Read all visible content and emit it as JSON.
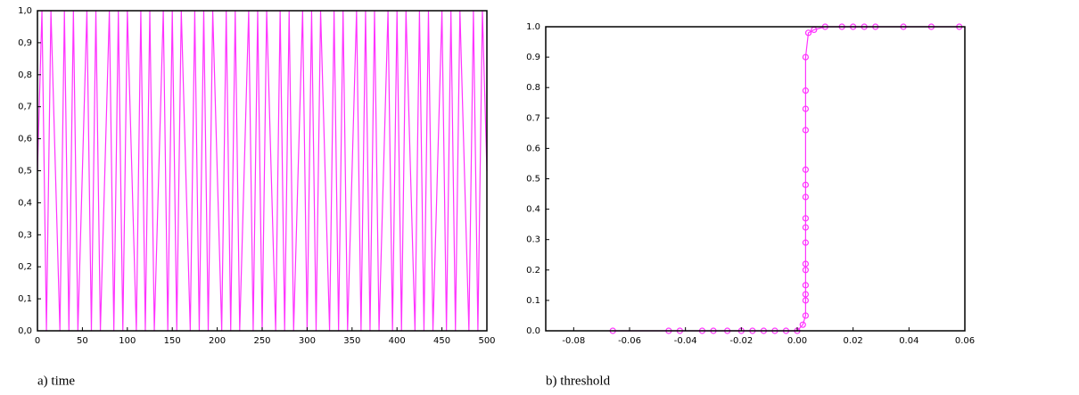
{
  "chart_data": [
    {
      "type": "line",
      "caption": "a) time",
      "x": [
        0,
        5,
        10,
        15,
        20,
        25,
        30,
        35,
        40,
        45,
        50,
        55,
        60,
        65,
        70,
        75,
        80,
        85,
        90,
        95,
        100,
        105,
        110,
        115,
        120,
        125,
        130,
        135,
        140,
        145,
        150,
        155,
        160,
        165,
        170,
        175,
        180,
        185,
        190,
        195,
        200,
        205,
        210,
        215,
        220,
        225,
        230,
        235,
        240,
        245,
        250,
        255,
        260,
        265,
        270,
        275,
        280,
        285,
        290,
        295,
        300,
        305,
        310,
        315,
        320,
        325,
        330,
        335,
        340,
        345,
        350,
        355,
        360,
        365,
        370,
        375,
        380,
        385,
        390,
        395,
        400,
        405,
        410,
        415,
        420,
        425,
        430,
        435,
        440,
        445,
        450,
        455,
        460,
        465,
        470,
        475,
        480,
        485,
        490,
        495,
        500
      ],
      "series": [
        {
          "color": "#ff33ff",
          "values": [
            0.5,
            1,
            0,
            1,
            0.5,
            0,
            1,
            0,
            1,
            0,
            0.5,
            1,
            0,
            1,
            0,
            0.5,
            1,
            0,
            1,
            0,
            1,
            0.5,
            0,
            1,
            0,
            1,
            0,
            0.5,
            1,
            0,
            1,
            0,
            1,
            0.5,
            0,
            1,
            0,
            1,
            0,
            1,
            0.5,
            0,
            1,
            0,
            1,
            0,
            0.5,
            1,
            0,
            1,
            0,
            1,
            0.5,
            0,
            1,
            0,
            1,
            0,
            0.5,
            1,
            0,
            1,
            0,
            1,
            0.5,
            0,
            1,
            0,
            1,
            0,
            0.5,
            1,
            0,
            1,
            0,
            1,
            0,
            0.5,
            1,
            0,
            1,
            0,
            1,
            0.5,
            0,
            1,
            0,
            1,
            0,
            0.5,
            1,
            0,
            1,
            0,
            1,
            0.5,
            0,
            1,
            0,
            1,
            0.5
          ]
        }
      ],
      "xlim": [
        0,
        500
      ],
      "xticks": [
        0,
        50,
        100,
        150,
        200,
        250,
        300,
        350,
        400,
        450,
        500
      ],
      "ylim": [
        0,
        1
      ],
      "yticks": [
        {
          "value": 0,
          "label": "0,0"
        },
        {
          "value": 0.1,
          "label": "0,1"
        },
        {
          "value": 0.2,
          "label": "0,2"
        },
        {
          "value": 0.3,
          "label": "0,3"
        },
        {
          "value": 0.4,
          "label": "0,4"
        },
        {
          "value": 0.5,
          "label": "0,5"
        },
        {
          "value": 0.6,
          "label": "0,6"
        },
        {
          "value": 0.7,
          "label": "0,7"
        },
        {
          "value": 0.8,
          "label": "0,8"
        },
        {
          "value": 0.9,
          "label": "0,9"
        },
        {
          "value": 1,
          "label": "1,0"
        }
      ],
      "markers": false
    },
    {
      "type": "line",
      "caption": "b) threshold",
      "x": [
        -0.066,
        -0.046,
        -0.042,
        -0.034,
        -0.03,
        -0.025,
        -0.02,
        -0.016,
        -0.012,
        -0.008,
        -0.004,
        0.0,
        0.002,
        0.003,
        0.003,
        0.003,
        0.003,
        0.003,
        0.003,
        0.003,
        0.003,
        0.003,
        0.003,
        0.003,
        0.003,
        0.003,
        0.003,
        0.003,
        0.003,
        0.004,
        0.006,
        0.01,
        0.016,
        0.02,
        0.024,
        0.028,
        0.038,
        0.048,
        0.058
      ],
      "series": [
        {
          "color": "#ff33ff",
          "values": [
            0,
            0,
            0,
            0,
            0,
            0,
            0,
            0,
            0,
            0,
            0,
            0,
            0.02,
            0.05,
            0.1,
            0.12,
            0.15,
            0.2,
            0.22,
            0.29,
            0.34,
            0.37,
            0.44,
            0.48,
            0.53,
            0.66,
            0.73,
            0.79,
            0.9,
            0.98,
            0.99,
            1,
            1,
            1,
            1,
            1,
            1,
            1,
            1
          ]
        }
      ],
      "xlim": [
        -0.09,
        0.06
      ],
      "xticks": [
        {
          "value": -0.08,
          "label": "-0.08"
        },
        {
          "value": -0.06,
          "label": "-0.06"
        },
        {
          "value": -0.04,
          "label": "-0.04"
        },
        {
          "value": -0.02,
          "label": "-0.02"
        },
        {
          "value": 0,
          "label": "0.00"
        },
        {
          "value": 0.02,
          "label": "0.02"
        },
        {
          "value": 0.04,
          "label": "0.04"
        },
        {
          "value": 0.06,
          "label": "0.06"
        }
      ],
      "ylim": [
        0,
        1
      ],
      "yticks": [
        {
          "value": 0,
          "label": "0.0"
        },
        {
          "value": 0.1,
          "label": "0.1"
        },
        {
          "value": 0.2,
          "label": "0.2"
        },
        {
          "value": 0.3,
          "label": "0.3"
        },
        {
          "value": 0.4,
          "label": "0.4"
        },
        {
          "value": 0.5,
          "label": "0.5"
        },
        {
          "value": 0.6,
          "label": "0.6"
        },
        {
          "value": 0.7,
          "label": "0.7"
        },
        {
          "value": 0.8,
          "label": "0.8"
        },
        {
          "value": 0.9,
          "label": "0.9"
        },
        {
          "value": 1,
          "label": "1.0"
        }
      ],
      "markers": true
    }
  ]
}
